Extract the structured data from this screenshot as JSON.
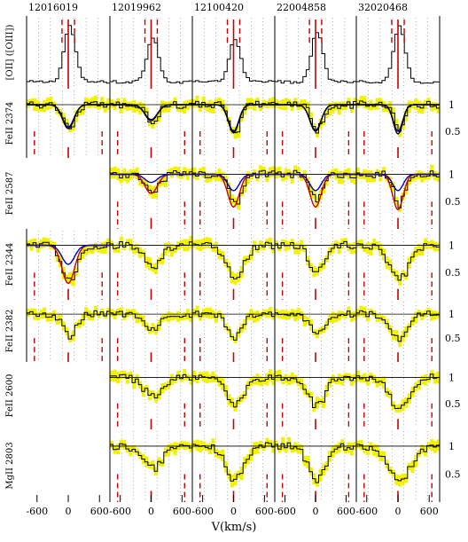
{
  "chart_data": {
    "type": "line",
    "title": "",
    "xlabel": "V(km/s)",
    "x_ticks": [
      "-600",
      "0",
      "600"
    ],
    "xlim": [
      -800,
      800
    ],
    "ylim": [
      0,
      1.3
    ],
    "right_ticks": [
      "1",
      "0.5"
    ],
    "columns": [
      "12016019",
      "12019962",
      "12100420",
      "22004858",
      "32020468"
    ],
    "rows": [
      {
        "label": "[OII] ([OIII])",
        "kind": "emission"
      },
      {
        "label": "FeII 2374",
        "kind": "absorption"
      },
      {
        "label": "FeII 2587",
        "kind": "absorption"
      },
      {
        "label": "FeII 2344",
        "kind": "absorption"
      },
      {
        "label": "FeII 2382",
        "kind": "absorption"
      },
      {
        "label": "FeII 2600",
        "kind": "absorption"
      },
      {
        "label": "MgII 2803",
        "kind": "absorption"
      }
    ],
    "present": [
      [
        true,
        true,
        true,
        true,
        true
      ],
      [
        true,
        true,
        true,
        true,
        true
      ],
      [
        false,
        true,
        true,
        true,
        true
      ],
      [
        true,
        true,
        true,
        true,
        true
      ],
      [
        true,
        true,
        true,
        true,
        true
      ],
      [
        false,
        true,
        true,
        true,
        true
      ],
      [
        false,
        true,
        true,
        true,
        true
      ]
    ],
    "emission_peak": [
      1.0,
      0.8,
      0.75,
      0.9,
      1.0
    ],
    "line_depths": [
      [
        0,
        0,
        0,
        0,
        0
      ],
      [
        0.45,
        0.3,
        0.55,
        0.5,
        0.55
      ],
      [
        0,
        0.3,
        0.55,
        0.5,
        0.55
      ],
      [
        0.65,
        0.4,
        0.55,
        0.5,
        0.6
      ],
      [
        0.45,
        0.3,
        0.5,
        0.45,
        0.55
      ],
      [
        0,
        0.35,
        0.55,
        0.55,
        0.6
      ],
      [
        0,
        0.4,
        0.6,
        0.6,
        0.65
      ]
    ],
    "line_widths": [
      [
        0,
        0,
        0,
        0,
        0
      ],
      [
        110,
        120,
        100,
        110,
        90
      ],
      [
        0,
        150,
        120,
        120,
        100
      ],
      [
        140,
        160,
        180,
        150,
        200
      ],
      [
        130,
        150,
        140,
        130,
        160
      ],
      [
        0,
        180,
        160,
        160,
        190
      ],
      [
        0,
        190,
        170,
        170,
        200
      ]
    ],
    "model_fits": [
      {
        "row": 1,
        "col": 0,
        "color": "#0000cc",
        "depth": 0.42,
        "width": 110
      },
      {
        "row": 1,
        "col": 0,
        "color": "#000000",
        "depth": 0.45,
        "width": 110
      },
      {
        "row": 1,
        "col": 1,
        "color": "#0000cc",
        "depth": 0.28,
        "width": 120
      },
      {
        "row": 1,
        "col": 1,
        "color": "#000000",
        "depth": 0.3,
        "width": 120
      },
      {
        "row": 1,
        "col": 2,
        "color": "#0000cc",
        "depth": 0.5,
        "width": 100
      },
      {
        "row": 1,
        "col": 2,
        "color": "#000000",
        "depth": 0.53,
        "width": 100
      },
      {
        "row": 1,
        "col": 3,
        "color": "#0000cc",
        "depth": 0.48,
        "width": 110
      },
      {
        "row": 1,
        "col": 3,
        "color": "#000000",
        "depth": 0.5,
        "width": 110
      },
      {
        "row": 1,
        "col": 4,
        "color": "#0000cc",
        "depth": 0.5,
        "width": 90
      },
      {
        "row": 1,
        "col": 4,
        "color": "#000000",
        "depth": 0.55,
        "width": 90
      },
      {
        "row": 2,
        "col": 1,
        "color": "#cc0000",
        "depth": 0.35,
        "width": 120
      },
      {
        "row": 2,
        "col": 1,
        "color": "#0000cc",
        "depth": 0.15,
        "width": 120
      },
      {
        "row": 2,
        "col": 2,
        "color": "#cc0000",
        "depth": 0.6,
        "width": 110
      },
      {
        "row": 2,
        "col": 2,
        "color": "#0000cc",
        "depth": 0.3,
        "width": 110
      },
      {
        "row": 2,
        "col": 3,
        "color": "#cc0000",
        "depth": 0.6,
        "width": 110
      },
      {
        "row": 2,
        "col": 3,
        "color": "#0000cc",
        "depth": 0.3,
        "width": 110
      },
      {
        "row": 2,
        "col": 4,
        "color": "#cc0000",
        "depth": 0.65,
        "width": 100
      },
      {
        "row": 2,
        "col": 4,
        "color": "#0000cc",
        "depth": 0.3,
        "width": 100
      },
      {
        "row": 3,
        "col": 0,
        "color": "#cc0000",
        "depth": 0.7,
        "width": 120
      },
      {
        "row": 3,
        "col": 0,
        "color": "#0000cc",
        "depth": 0.35,
        "width": 120
      }
    ],
    "red_center_velocity": 0,
    "dashed_markers": {
      "emission": [
        -120,
        120
      ],
      "absorption": [
        -650,
        650
      ]
    },
    "grid": "dotted-vertical",
    "colors": {
      "data": "#000000",
      "error": "#f2f200",
      "systemic": "#cc0000",
      "model_red": "#cc0000",
      "model_blue": "#0000cc"
    }
  }
}
